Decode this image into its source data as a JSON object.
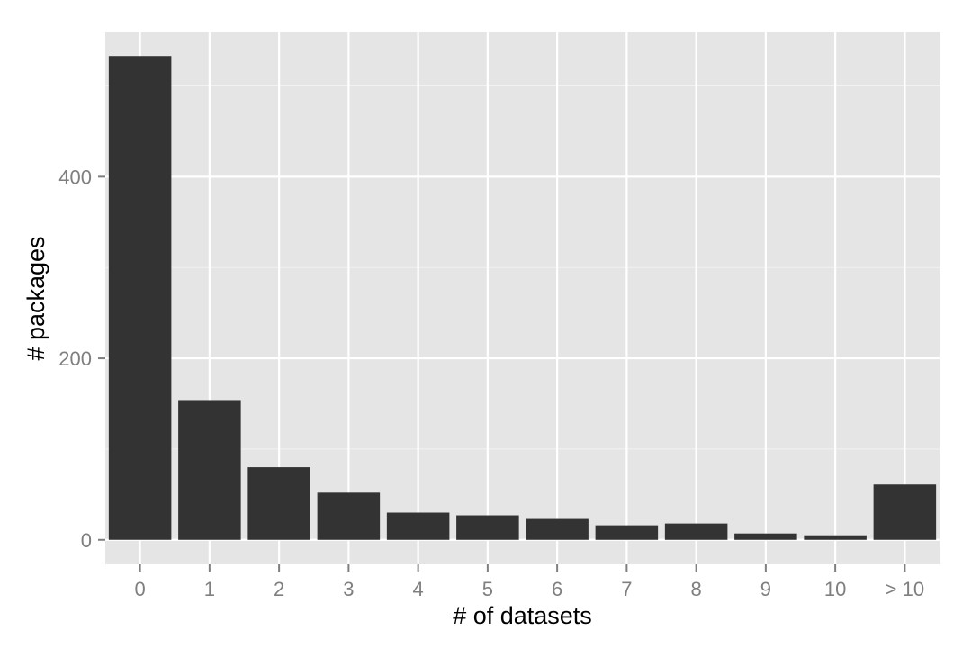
{
  "chart_data": {
    "type": "bar",
    "title": "",
    "xlabel": "# of datasets",
    "ylabel": "# packages",
    "categories": [
      "0",
      "1",
      "2",
      "3",
      "4",
      "5",
      "6",
      "7",
      "8",
      "9",
      "10",
      "> 10"
    ],
    "values": [
      533,
      154,
      80,
      52,
      30,
      27,
      23,
      16,
      18,
      7,
      5,
      61
    ],
    "ylim": [
      -27,
      559
    ],
    "yticks": [
      0,
      200,
      400
    ],
    "ytick_labels": [
      "0",
      "200",
      "400"
    ],
    "grid": true,
    "legend": "none",
    "colors": {
      "panel_background": "#e5e5e5",
      "grid_major": "#ffffff",
      "grid_minor": "#f2f2f2",
      "bar_fill": "#333333",
      "tick_color": "#7f7f7f",
      "tick_label_color": "#7f7f7f",
      "axis_title_color": "#000000"
    }
  }
}
